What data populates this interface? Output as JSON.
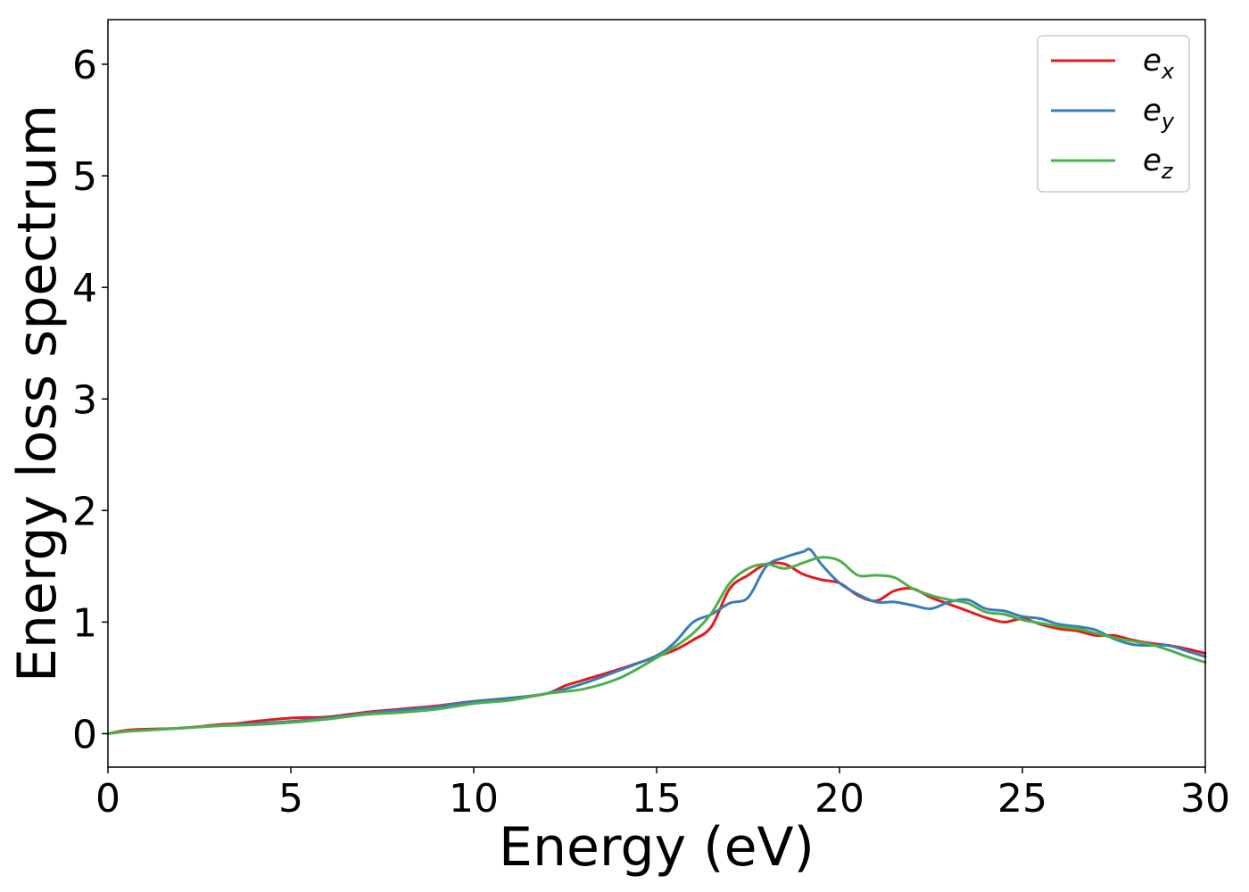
{
  "chart_data": {
    "type": "line",
    "xlabel": "Energy (eV)",
    "ylabel": "Energy loss spectrum",
    "xlim": [
      0,
      30
    ],
    "ylim": [
      -0.3,
      6.4
    ],
    "xticks": [
      0,
      5,
      10,
      15,
      20,
      25,
      30
    ],
    "xtick_labels": [
      "0",
      "5",
      "10",
      "15",
      "20",
      "25",
      "30"
    ],
    "yticks": [
      0,
      1,
      2,
      3,
      4,
      5,
      6
    ],
    "ytick_labels": [
      "0",
      "1",
      "2",
      "3",
      "4",
      "5",
      "6"
    ],
    "grid": false,
    "legend_position": "top-right",
    "series": [
      {
        "name": "e_x",
        "label_main": "e",
        "label_sub": "x",
        "color": "#e41a1c",
        "x": [
          0,
          0.5,
          1,
          2,
          3,
          3.5,
          4,
          5,
          6,
          7,
          8,
          9,
          10,
          11,
          12,
          12.5,
          13,
          14,
          15,
          15.5,
          16,
          16.5,
          17,
          17.5,
          18,
          18.5,
          19,
          19.5,
          20,
          20.5,
          21,
          21.5,
          22,
          22.5,
          23,
          23.5,
          24,
          24.5,
          25,
          25.5,
          26,
          26.5,
          27,
          27.5,
          28,
          28.5,
          29,
          29.5,
          30
        ],
        "y": [
          0,
          0.03,
          0.04,
          0.05,
          0.08,
          0.09,
          0.11,
          0.14,
          0.15,
          0.19,
          0.22,
          0.25,
          0.29,
          0.31,
          0.36,
          0.43,
          0.48,
          0.58,
          0.69,
          0.75,
          0.84,
          0.96,
          1.3,
          1.42,
          1.52,
          1.52,
          1.43,
          1.38,
          1.35,
          1.24,
          1.19,
          1.28,
          1.3,
          1.22,
          1.16,
          1.1,
          1.04,
          1.0,
          1.03,
          0.98,
          0.94,
          0.92,
          0.88,
          0.88,
          0.84,
          0.81,
          0.79,
          0.76,
          0.72
        ]
      },
      {
        "name": "e_y",
        "label_main": "e",
        "label_sub": "y",
        "color": "#377eb8",
        "x": [
          0,
          0.5,
          1,
          2,
          3,
          4,
          5,
          6,
          7,
          8,
          9,
          10,
          11,
          12,
          13,
          14,
          15,
          15.5,
          16,
          16.5,
          17,
          17.5,
          18,
          18.5,
          19,
          19.2,
          19.5,
          20,
          20.5,
          21,
          21.5,
          22,
          22.5,
          23,
          23.5,
          24,
          24.5,
          25,
          25.5,
          26,
          26.5,
          27,
          27.5,
          28,
          28.5,
          29,
          29.5,
          30
        ],
        "y": [
          0,
          0.02,
          0.03,
          0.05,
          0.07,
          0.09,
          0.11,
          0.14,
          0.18,
          0.21,
          0.24,
          0.29,
          0.32,
          0.36,
          0.45,
          0.57,
          0.7,
          0.82,
          1.0,
          1.07,
          1.17,
          1.22,
          1.5,
          1.58,
          1.63,
          1.65,
          1.52,
          1.35,
          1.25,
          1.18,
          1.18,
          1.15,
          1.12,
          1.18,
          1.2,
          1.12,
          1.1,
          1.05,
          1.03,
          0.98,
          0.96,
          0.93,
          0.85,
          0.8,
          0.79,
          0.79,
          0.74,
          0.69
        ]
      },
      {
        "name": "e_z",
        "label_main": "e",
        "label_sub": "z",
        "color": "#4daf4a",
        "x": [
          0,
          0.5,
          1,
          2,
          3,
          4,
          5,
          6,
          7,
          8,
          9,
          10,
          11,
          12,
          13,
          14,
          15,
          15.5,
          16,
          16.5,
          17,
          17.5,
          18,
          18.5,
          19,
          19.5,
          20,
          20.5,
          21,
          21.5,
          22,
          22.5,
          23,
          23.5,
          24,
          24.5,
          25,
          25.5,
          26,
          26.5,
          27,
          27.5,
          28,
          28.5,
          29,
          29.5,
          30
        ],
        "y": [
          0,
          0.02,
          0.03,
          0.05,
          0.07,
          0.08,
          0.1,
          0.13,
          0.17,
          0.19,
          0.22,
          0.27,
          0.3,
          0.36,
          0.4,
          0.5,
          0.68,
          0.78,
          0.9,
          1.08,
          1.35,
          1.48,
          1.52,
          1.48,
          1.53,
          1.58,
          1.55,
          1.42,
          1.42,
          1.4,
          1.3,
          1.24,
          1.2,
          1.17,
          1.09,
          1.07,
          1.02,
          0.99,
          0.96,
          0.94,
          0.9,
          0.86,
          0.83,
          0.8,
          0.75,
          0.69,
          0.64
        ]
      }
    ]
  }
}
